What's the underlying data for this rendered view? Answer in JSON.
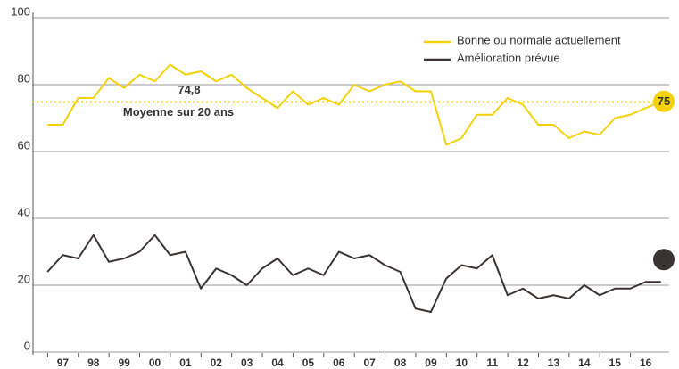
{
  "chart_data": {
    "type": "line",
    "x": [
      1996.5,
      1997,
      1997.5,
      1998,
      1998.5,
      1999,
      1999.5,
      2000,
      2000.5,
      2001,
      2001.5,
      2002,
      2002.5,
      2003,
      2003.5,
      2004,
      2004.5,
      2005,
      2005.5,
      2006,
      2006.5,
      2007,
      2007.5,
      2008,
      2008.5,
      2009,
      2009.5,
      2010,
      2010.5,
      2011,
      2011.5,
      2012,
      2012.5,
      2013,
      2013.5,
      2014,
      2014.5,
      2015,
      2015.5,
      2016,
      2016.5
    ],
    "series": [
      {
        "name": "Bonne ou normale actuellement",
        "color": "#f5d10a",
        "values": [
          68,
          68,
          76,
          76,
          82,
          79,
          83,
          81,
          86,
          83,
          84,
          81,
          83,
          79,
          76,
          73,
          78,
          74,
          76,
          74,
          80,
          78,
          80,
          81,
          78,
          78,
          62,
          64,
          71,
          71,
          76,
          74,
          68,
          68,
          64,
          66,
          65,
          70,
          71,
          73,
          75
        ]
      },
      {
        "name": "Amélioration prévue",
        "color": "#3b3333",
        "values": [
          24,
          29,
          28,
          35,
          27,
          28,
          30,
          35,
          29,
          30,
          19,
          25,
          23,
          20,
          25,
          28,
          23,
          25,
          23,
          30,
          28,
          29,
          26,
          24,
          13,
          12,
          22,
          26,
          25,
          29,
          17,
          19,
          16,
          17,
          16,
          20,
          17,
          19,
          19,
          21,
          21
        ]
      }
    ],
    "reference": {
      "value": 74.8,
      "label": "74,8",
      "text": "Moyenne sur 20 ans"
    },
    "xlim": [
      1996,
      2017
    ],
    "xticks": [
      {
        "value": 1997,
        "label": "97"
      },
      {
        "value": 1998,
        "label": "98"
      },
      {
        "value": 1999,
        "label": "99"
      },
      {
        "value": 2000,
        "label": "00"
      },
      {
        "value": 2001,
        "label": "01"
      },
      {
        "value": 2002,
        "label": "02"
      },
      {
        "value": 2003,
        "label": "03"
      },
      {
        "value": 2004,
        "label": "04"
      },
      {
        "value": 2005,
        "label": "05"
      },
      {
        "value": 2006,
        "label": "06"
      },
      {
        "value": 2007,
        "label": "07"
      },
      {
        "value": 2008,
        "label": "08"
      },
      {
        "value": 2009,
        "label": "09"
      },
      {
        "value": 2010,
        "label": "10"
      },
      {
        "value": 2011,
        "label": "11"
      },
      {
        "value": 2012,
        "label": "12"
      },
      {
        "value": 2013,
        "label": "13"
      },
      {
        "value": 2014,
        "label": "14"
      },
      {
        "value": 2015,
        "label": "15"
      },
      {
        "value": 2016,
        "label": "16"
      }
    ],
    "ylim": [
      0,
      100
    ],
    "yticks": [
      0,
      20,
      40,
      60,
      80,
      100
    ],
    "grid": true
  }
}
